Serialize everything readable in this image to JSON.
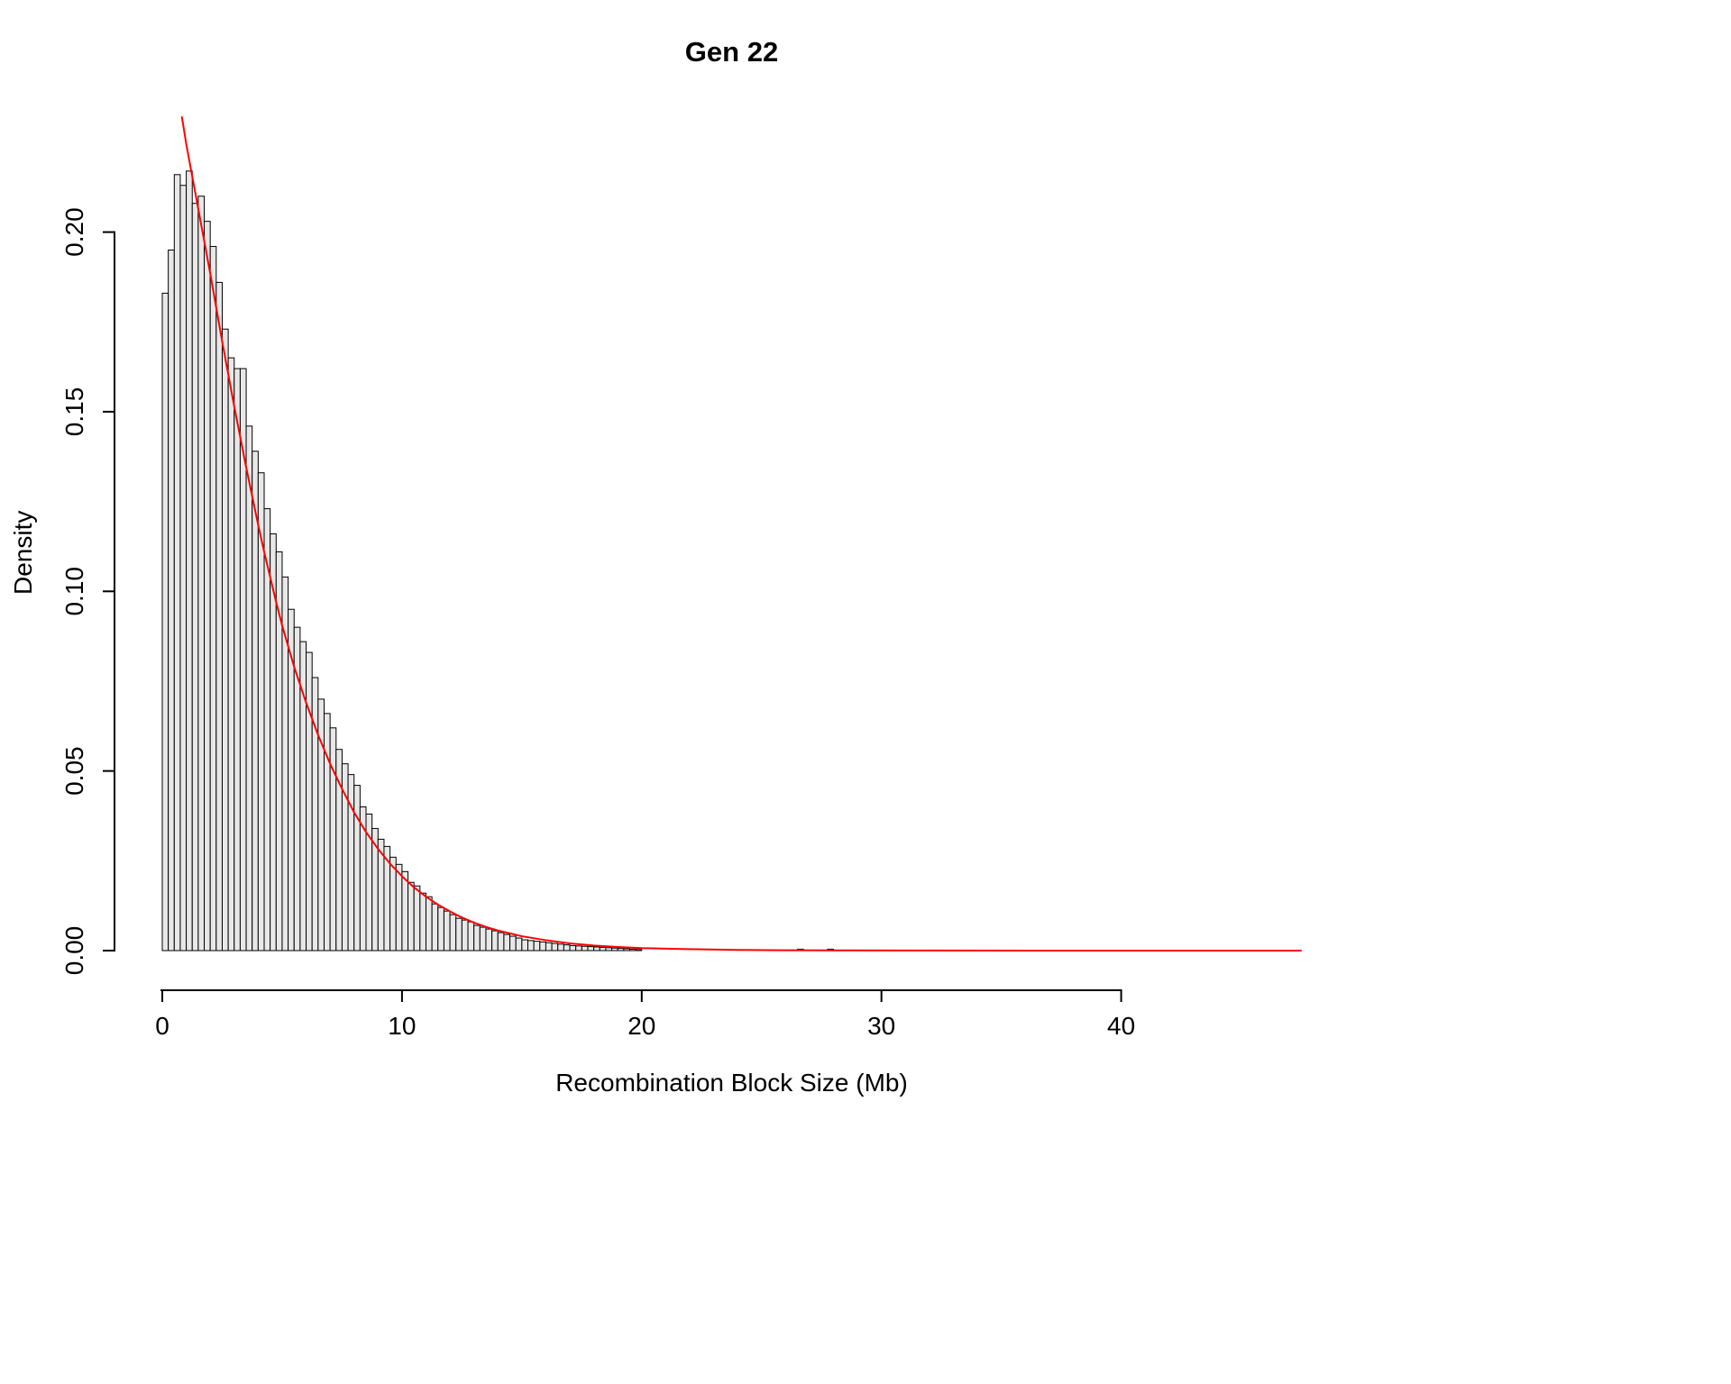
{
  "title": "Gen 22",
  "x_label": "Recombination Block Size (Mb)",
  "y_label": "Density",
  "chart_data": {
    "type": "bar",
    "subtype": "histogram_with_density_curve",
    "title": "Gen 22",
    "xlabel": "Recombination Block Size (Mb)",
    "ylabel": "Density",
    "xlim": [
      0,
      47.5
    ],
    "ylim": [
      0,
      0.232
    ],
    "x_ticks": [
      0,
      10,
      20,
      30,
      40
    ],
    "x_tick_labels": [
      "0",
      "10",
      "20",
      "30",
      "40"
    ],
    "y_ticks": [
      0,
      0.05,
      0.1,
      0.15,
      0.2
    ],
    "y_tick_labels": [
      "0.00",
      "0.05",
      "0.10",
      "0.15",
      "0.20"
    ],
    "grid": false,
    "legend": "none",
    "histogram": {
      "bin_width": 0.25,
      "first_bin_start": 0,
      "densities": [
        0.183,
        0.195,
        0.216,
        0.213,
        0.217,
        0.208,
        0.21,
        0.203,
        0.196,
        0.186,
        0.173,
        0.165,
        0.162,
        0.162,
        0.146,
        0.139,
        0.133,
        0.123,
        0.116,
        0.111,
        0.104,
        0.095,
        0.09,
        0.086,
        0.083,
        0.076,
        0.07,
        0.066,
        0.062,
        0.056,
        0.052,
        0.049,
        0.046,
        0.04,
        0.038,
        0.034,
        0.031,
        0.029,
        0.026,
        0.024,
        0.022,
        0.019,
        0.018,
        0.016,
        0.015,
        0.013,
        0.012,
        0.011,
        0.01,
        0.009,
        0.0085,
        0.008,
        0.007,
        0.0065,
        0.006,
        0.0055,
        0.005,
        0.0045,
        0.004,
        0.0035,
        0.003,
        0.0028,
        0.0026,
        0.0024,
        0.0022,
        0.002,
        0.0018,
        0.0016,
        0.0014,
        0.0013,
        0.0012,
        0.0011,
        0.001,
        0.0009,
        0.0008,
        0.0007,
        0.0006,
        0.0005,
        0.0004,
        0.0003
      ],
      "outlier_bins": [
        {
          "x": 26.5,
          "density": 0.0004
        },
        {
          "x": 27.75,
          "density": 0.0004
        }
      ]
    },
    "fit_curve": {
      "label": "exponential-fit-curve",
      "points": [
        [
          0.82,
          0.232
        ],
        [
          1.0,
          0.2245
        ],
        [
          1.25,
          0.2155
        ],
        [
          1.5,
          0.2065
        ],
        [
          1.75,
          0.1975
        ],
        [
          2.0,
          0.1885
        ],
        [
          2.25,
          0.179
        ],
        [
          2.5,
          0.1695
        ],
        [
          2.75,
          0.1605
        ],
        [
          3.0,
          0.1515
        ],
        [
          3.25,
          0.143
        ],
        [
          3.5,
          0.1345
        ],
        [
          3.75,
          0.1265
        ],
        [
          4.0,
          0.1185
        ],
        [
          4.25,
          0.111
        ],
        [
          4.5,
          0.104
        ],
        [
          4.75,
          0.097
        ],
        [
          5.0,
          0.0905
        ],
        [
          5.5,
          0.079
        ],
        [
          6.0,
          0.069
        ],
        [
          6.5,
          0.06
        ],
        [
          7.0,
          0.052
        ],
        [
          7.5,
          0.045
        ],
        [
          8.0,
          0.0385
        ],
        [
          8.5,
          0.033
        ],
        [
          9.0,
          0.0283
        ],
        [
          9.5,
          0.0242
        ],
        [
          10.0,
          0.0207
        ],
        [
          10.5,
          0.0176
        ],
        [
          11.0,
          0.015
        ],
        [
          11.5,
          0.0128
        ],
        [
          12.0,
          0.0109
        ],
        [
          12.5,
          0.0092
        ],
        [
          13.0,
          0.0078
        ],
        [
          13.5,
          0.0066
        ],
        [
          14.0,
          0.0056
        ],
        [
          14.5,
          0.0048
        ],
        [
          15.0,
          0.004
        ],
        [
          16.0,
          0.0029
        ],
        [
          17.0,
          0.002
        ],
        [
          18.0,
          0.0014
        ],
        [
          19.0,
          0.001
        ],
        [
          20.0,
          0.0007
        ],
        [
          22.0,
          0.0004
        ],
        [
          24.0,
          0.0002
        ],
        [
          26.0,
          0.0001
        ],
        [
          28.0,
          6e-05
        ],
        [
          32.0,
          2e-05
        ],
        [
          38.0,
          1e-05
        ],
        [
          47.5,
          0.0
        ]
      ]
    },
    "colors": {
      "bar_fill": "#E8E8E8",
      "bar_stroke": "#000000",
      "curve": "#FF0000",
      "axis": "#000000",
      "text": "#000000",
      "background": "#FFFFFF"
    }
  }
}
